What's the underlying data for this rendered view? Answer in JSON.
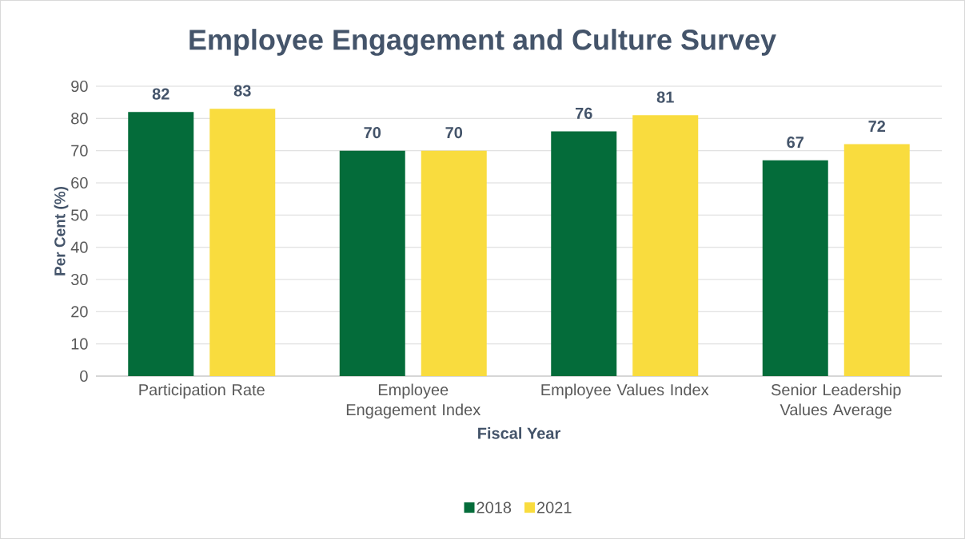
{
  "chart_data": {
    "type": "bar",
    "title": "Employee Engagement and Culture Survey",
    "xlabel": "Fiscal Year",
    "ylabel": "Per Cent (%)",
    "categories": [
      "Participation Rate",
      "Employee Engagement Index",
      "Employee Values Index",
      "Senior Leadership Values Average"
    ],
    "series": [
      {
        "name": "2018",
        "color": "#046c3a",
        "values": [
          82,
          70,
          76,
          67
        ]
      },
      {
        "name": "2021",
        "color": "#f9dc3e",
        "values": [
          83,
          70,
          81,
          72
        ]
      }
    ],
    "ylim": [
      0,
      90
    ],
    "yticks": [
      0,
      10,
      20,
      30,
      40,
      50,
      60,
      70,
      80,
      90
    ],
    "grid": "y",
    "legend": "bottom",
    "data_labels": true
  }
}
